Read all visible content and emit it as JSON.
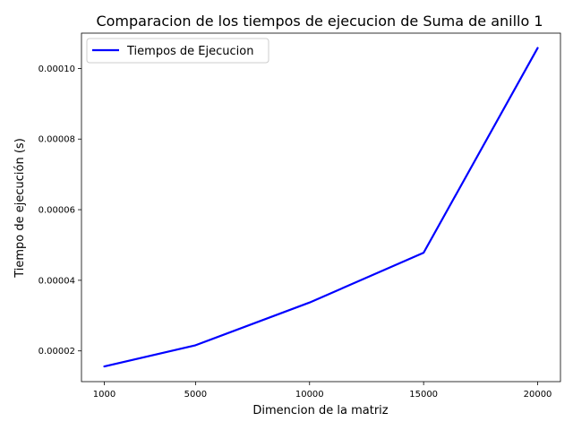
{
  "chart_data": {
    "type": "line",
    "title": "Comparacion de los tiempos de ejecucion de Suma de anillo 1",
    "xlabel": "Dimencion de la matriz",
    "ylabel": "Tiempo de ejecución (s)",
    "x": [
      1000,
      5000,
      10000,
      15000,
      20000
    ],
    "x_tick_labels": [
      "1000",
      "5000",
      "10000",
      "15000",
      "20000"
    ],
    "y_ticks": [
      2e-05,
      4e-05,
      6e-05,
      8e-05,
      0.0001
    ],
    "y_tick_labels": [
      "0.00002",
      "0.00004",
      "0.00006",
      "0.00008",
      "0.00010"
    ],
    "xlim": [
      0,
      21000
    ],
    "ylim": [
      1.13e-05,
      0.00011
    ],
    "grid": false,
    "legend_position": "top-left",
    "series": [
      {
        "name": "Tiempos de Ejecucion",
        "color": "#0000ff",
        "values": [
          1.56e-05,
          2.16e-05,
          3.37e-05,
          4.78e-05,
          0.0001058
        ]
      }
    ]
  }
}
